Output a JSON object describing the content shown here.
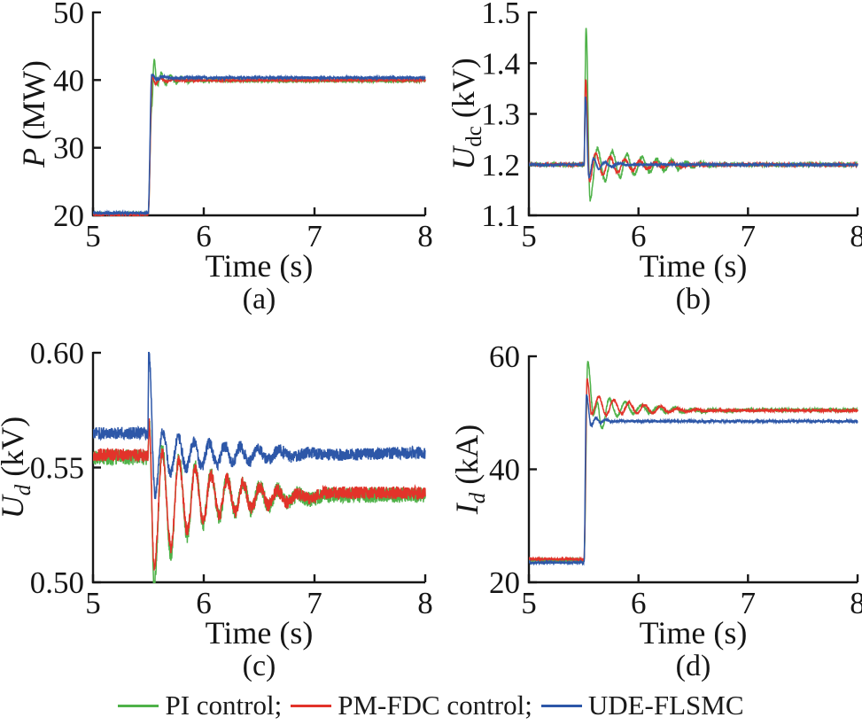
{
  "colors": {
    "green": "#4FB249",
    "red": "#E2332A",
    "blue": "#2D57A8",
    "axis": "#161616"
  },
  "legend": {
    "items": [
      {
        "label": "PI control;",
        "color": "green"
      },
      {
        "label": "PM-FDC control;",
        "color": "red"
      },
      {
        "label": "UDE-FLSMC",
        "color": "blue"
      }
    ]
  },
  "chart_data": [
    {
      "id": "a",
      "type": "line",
      "caption": "(a)",
      "xlabel": "Time (s)",
      "ylabel": {
        "var": "P",
        "sub": "",
        "sub_italic": false,
        "unit": "(MW)"
      },
      "xlim": [
        5,
        8
      ],
      "ylim": [
        20,
        50
      ],
      "grid": false,
      "xticks": [
        5,
        6,
        7,
        8
      ],
      "xtick_labels": [
        "5",
        "6",
        "7",
        "8"
      ],
      "yticks": [
        20,
        30,
        40,
        50
      ],
      "ytick_labels": [
        "20",
        "30",
        "40",
        "50"
      ],
      "series": [
        {
          "name": "PI control",
          "color": "green",
          "noise": 0.22,
          "points": [
            [
              5,
              20.25
            ],
            [
              5.498,
              20.25
            ],
            [
              5.53,
              36
            ],
            [
              5.552,
              43
            ],
            [
              5.58,
              39.2
            ],
            [
              5.617,
              41
            ],
            [
              5.655,
              39.4
            ],
            [
              5.7,
              40.7
            ],
            [
              5.75,
              39.6
            ],
            [
              5.8,
              40.4
            ],
            [
              5.855,
              39.7
            ],
            [
              5.92,
              40.2
            ],
            [
              5.99,
              39.85
            ],
            [
              6.08,
              40.0
            ],
            [
              6.2,
              39.9
            ],
            [
              8,
              39.9
            ]
          ]
        },
        {
          "name": "PM-FDC control",
          "color": "red",
          "noise": 0.18,
          "points": [
            [
              5,
              20.1
            ],
            [
              5.498,
              20.1
            ],
            [
              5.535,
              40.5
            ],
            [
              5.565,
              39.4
            ],
            [
              5.61,
              40.3
            ],
            [
              5.66,
              39.8
            ],
            [
              5.72,
              40.1
            ],
            [
              5.8,
              39.95
            ],
            [
              8,
              40.0
            ]
          ]
        },
        {
          "name": "UDE-FLSMC",
          "color": "blue",
          "noise": 0.2,
          "points": [
            [
              5,
              20.35
            ],
            [
              5.498,
              20.35
            ],
            [
              5.53,
              40.8
            ],
            [
              5.57,
              40.1
            ],
            [
              5.63,
              40.5
            ],
            [
              5.72,
              40.3
            ],
            [
              5.85,
              40.35
            ],
            [
              8,
              40.35
            ]
          ]
        }
      ]
    },
    {
      "id": "b",
      "type": "line",
      "caption": "(b)",
      "xlabel": "Time (s)",
      "ylabel": {
        "var": "U",
        "sub": "dc",
        "sub_italic": false,
        "unit": "(kV)"
      },
      "xlim": [
        5,
        8
      ],
      "ylim": [
        1.1,
        1.5
      ],
      "grid": false,
      "xticks": [
        5,
        6,
        7,
        8
      ],
      "xtick_labels": [
        "5",
        "6",
        "7",
        "8"
      ],
      "yticks": [
        1.1,
        1.2,
        1.3,
        1.4,
        1.5
      ],
      "ytick_labels": [
        "1.1",
        "1.2",
        "1.3",
        "1.4",
        "1.5"
      ],
      "series": [
        {
          "name": "PI control",
          "color": "green",
          "noise": 0.004,
          "points": [
            [
              5,
              1.2
            ],
            [
              5.503,
              1.2
            ],
            [
              5.522,
              1.47
            ],
            [
              5.558,
              1.131
            ],
            [
              5.625,
              1.232
            ],
            [
              5.695,
              1.168
            ],
            [
              5.762,
              1.226
            ],
            [
              5.83,
              1.174
            ],
            [
              5.895,
              1.22
            ],
            [
              5.962,
              1.18
            ],
            [
              6.03,
              1.215
            ],
            [
              6.1,
              1.185
            ],
            [
              6.165,
              1.211
            ],
            [
              6.235,
              1.189
            ],
            [
              6.3,
              1.208
            ],
            [
              6.37,
              1.192
            ],
            [
              6.435,
              1.205
            ],
            [
              6.5,
              1.195
            ],
            [
              6.57,
              1.203
            ],
            [
              6.65,
              1.198
            ],
            [
              6.75,
              1.2
            ],
            [
              8,
              1.2
            ]
          ]
        },
        {
          "name": "PM-FDC control",
          "color": "red",
          "noise": 0.003,
          "points": [
            [
              5,
              1.2
            ],
            [
              5.503,
              1.2
            ],
            [
              5.518,
              1.37
            ],
            [
              5.552,
              1.168
            ],
            [
              5.61,
              1.222
            ],
            [
              5.675,
              1.18
            ],
            [
              5.74,
              1.215
            ],
            [
              5.81,
              1.185
            ],
            [
              5.875,
              1.21
            ],
            [
              5.945,
              1.189
            ],
            [
              6.01,
              1.207
            ],
            [
              6.08,
              1.192
            ],
            [
              6.15,
              1.204
            ],
            [
              6.22,
              1.195
            ],
            [
              6.3,
              1.203
            ],
            [
              6.4,
              1.197
            ],
            [
              6.5,
              1.2
            ],
            [
              8,
              1.2
            ]
          ]
        },
        {
          "name": "UDE-FLSMC",
          "color": "blue",
          "noise": 0.0022,
          "points": [
            [
              5,
              1.2
            ],
            [
              5.503,
              1.2
            ],
            [
              5.515,
              1.335
            ],
            [
              5.548,
              1.175
            ],
            [
              5.59,
              1.212
            ],
            [
              5.64,
              1.191
            ],
            [
              5.69,
              1.205
            ],
            [
              5.75,
              1.196
            ],
            [
              5.82,
              1.202
            ],
            [
              5.9,
              1.199
            ],
            [
              6,
              1.2
            ],
            [
              8,
              1.2
            ]
          ]
        }
      ]
    },
    {
      "id": "c",
      "type": "line",
      "caption": "(c)",
      "xlabel": "Time (s)",
      "ylabel": {
        "var": "U",
        "sub": "d",
        "sub_italic": true,
        "unit": "(kV)"
      },
      "xlim": [
        5,
        8
      ],
      "ylim": [
        0.5,
        0.6
      ],
      "grid": false,
      "xticks": [
        5,
        6,
        7,
        8
      ],
      "xtick_labels": [
        "5",
        "6",
        "7",
        "8"
      ],
      "yticks": [
        0.5,
        0.55,
        0.6
      ],
      "ytick_labels": [
        "0.50",
        "0.55",
        "0.60"
      ],
      "series": [
        {
          "name": "PI control",
          "color": "green",
          "noise": 0.0034,
          "points": [
            [
              5,
              0.5545
            ],
            [
              5.496,
              0.5545
            ],
            [
              5.507,
              0.571
            ],
            [
              5.553,
              0.5
            ],
            [
              5.625,
              0.558
            ],
            [
              5.703,
              0.5125
            ],
            [
              5.775,
              0.5545
            ],
            [
              5.85,
              0.5205
            ],
            [
              5.922,
              0.5505
            ],
            [
              5.995,
              0.5255
            ],
            [
              6.065,
              0.5475
            ],
            [
              6.14,
              0.5285
            ],
            [
              6.21,
              0.5455
            ],
            [
              6.285,
              0.5305
            ],
            [
              6.355,
              0.5435
            ],
            [
              6.43,
              0.5315
            ],
            [
              6.505,
              0.542
            ],
            [
              6.585,
              0.533
            ],
            [
              6.665,
              0.5405
            ],
            [
              6.75,
              0.5345
            ],
            [
              6.85,
              0.5385
            ],
            [
              6.95,
              0.536
            ],
            [
              7.1,
              0.538
            ],
            [
              8,
              0.538
            ]
          ]
        },
        {
          "name": "PM-FDC control",
          "color": "red",
          "noise": 0.0028,
          "points": [
            [
              5,
              0.5555
            ],
            [
              5.496,
              0.5555
            ],
            [
              5.507,
              0.569
            ],
            [
              5.553,
              0.5065
            ],
            [
              5.625,
              0.5565
            ],
            [
              5.703,
              0.5155
            ],
            [
              5.775,
              0.553
            ],
            [
              5.85,
              0.5225
            ],
            [
              5.922,
              0.5495
            ],
            [
              5.995,
              0.527
            ],
            [
              6.065,
              0.5465
            ],
            [
              6.14,
              0.5295
            ],
            [
              6.21,
              0.545
            ],
            [
              6.285,
              0.531
            ],
            [
              6.355,
              0.543
            ],
            [
              6.43,
              0.532
            ],
            [
              6.505,
              0.5415
            ],
            [
              6.585,
              0.5335
            ],
            [
              6.665,
              0.54
            ],
            [
              6.75,
              0.535
            ],
            [
              6.85,
              0.5385
            ],
            [
              6.95,
              0.5365
            ],
            [
              7.1,
              0.539
            ],
            [
              8,
              0.539
            ]
          ]
        },
        {
          "name": "UDE-FLSMC",
          "color": "blue",
          "noise": 0.0027,
          "points": [
            [
              5,
              0.565
            ],
            [
              5.496,
              0.565
            ],
            [
              5.503,
              0.6005
            ],
            [
              5.56,
              0.5385
            ],
            [
              5.628,
              0.566
            ],
            [
              5.7,
              0.5475
            ],
            [
              5.77,
              0.5635
            ],
            [
              5.84,
              0.5495
            ],
            [
              5.91,
              0.5615
            ],
            [
              5.98,
              0.5505
            ],
            [
              6.05,
              0.5605
            ],
            [
              6.12,
              0.5515
            ],
            [
              6.19,
              0.5595
            ],
            [
              6.26,
              0.552
            ],
            [
              6.33,
              0.559
            ],
            [
              6.41,
              0.5525
            ],
            [
              6.49,
              0.558
            ],
            [
              6.58,
              0.5535
            ],
            [
              6.68,
              0.5575
            ],
            [
              6.8,
              0.5545
            ],
            [
              6.95,
              0.5565
            ],
            [
              7.1,
              0.5555
            ],
            [
              8,
              0.5565
            ]
          ]
        }
      ]
    },
    {
      "id": "d",
      "type": "line",
      "caption": "(d)",
      "xlabel": "Time (s)",
      "ylabel": {
        "var": "I",
        "sub": "d",
        "sub_italic": true,
        "unit": "(kA)"
      },
      "xlim": [
        5,
        8
      ],
      "ylim": [
        20,
        60
      ],
      "grid": false,
      "xticks": [
        5,
        6,
        7,
        8
      ],
      "xtick_labels": [
        "5",
        "6",
        "7",
        "8"
      ],
      "yticks": [
        20,
        40,
        60
      ],
      "ytick_labels": [
        "20",
        "40",
        "60"
      ],
      "series": [
        {
          "name": "PI control",
          "color": "green",
          "noise": 0.28,
          "points": [
            [
              5,
              23.9
            ],
            [
              5.503,
              23.9
            ],
            [
              5.537,
              59
            ],
            [
              5.59,
              49.6
            ],
            [
              5.625,
              51.8
            ],
            [
              5.665,
              47.2
            ],
            [
              5.735,
              52.5
            ],
            [
              5.805,
              49.5
            ],
            [
              5.88,
              51.9
            ],
            [
              5.955,
              49.8
            ],
            [
              6.03,
              51.4
            ],
            [
              6.105,
              49.9
            ],
            [
              6.18,
              51.1
            ],
            [
              6.255,
              50.0
            ],
            [
              6.33,
              50.9
            ],
            [
              6.41,
              50.1
            ],
            [
              6.49,
              50.7
            ],
            [
              6.58,
              50.2
            ],
            [
              6.68,
              50.55
            ],
            [
              6.8,
              50.3
            ],
            [
              7,
              50.5
            ],
            [
              8,
              50.5
            ]
          ]
        },
        {
          "name": "PM-FDC control",
          "color": "red",
          "noise": 0.22,
          "points": [
            [
              5,
              24.1
            ],
            [
              5.503,
              24.1
            ],
            [
              5.532,
              56
            ],
            [
              5.572,
              49.8
            ],
            [
              5.638,
              52.8
            ],
            [
              5.705,
              49.6
            ],
            [
              5.775,
              52.3
            ],
            [
              5.845,
              49.8
            ],
            [
              5.915,
              51.8
            ],
            [
              5.985,
              49.9
            ],
            [
              6.055,
              51.4
            ],
            [
              6.13,
              50.0
            ],
            [
              6.205,
              51.1
            ],
            [
              6.28,
              50.1
            ],
            [
              6.355,
              50.8
            ],
            [
              6.44,
              50.2
            ],
            [
              6.53,
              50.6
            ],
            [
              6.63,
              50.3
            ],
            [
              6.75,
              50.45
            ],
            [
              7,
              50.4
            ],
            [
              8,
              50.4
            ]
          ]
        },
        {
          "name": "UDE-FLSMC",
          "color": "blue",
          "noise": 0.22,
          "points": [
            [
              5,
              23.5
            ],
            [
              5.503,
              23.5
            ],
            [
              5.525,
              53.2
            ],
            [
              5.568,
              47.7
            ],
            [
              5.61,
              49.1
            ],
            [
              5.655,
              48.2
            ],
            [
              5.7,
              48.8
            ],
            [
              5.755,
              48.4
            ],
            [
              5.82,
              48.6
            ],
            [
              5.9,
              48.5
            ],
            [
              8,
              48.5
            ]
          ]
        }
      ]
    }
  ]
}
